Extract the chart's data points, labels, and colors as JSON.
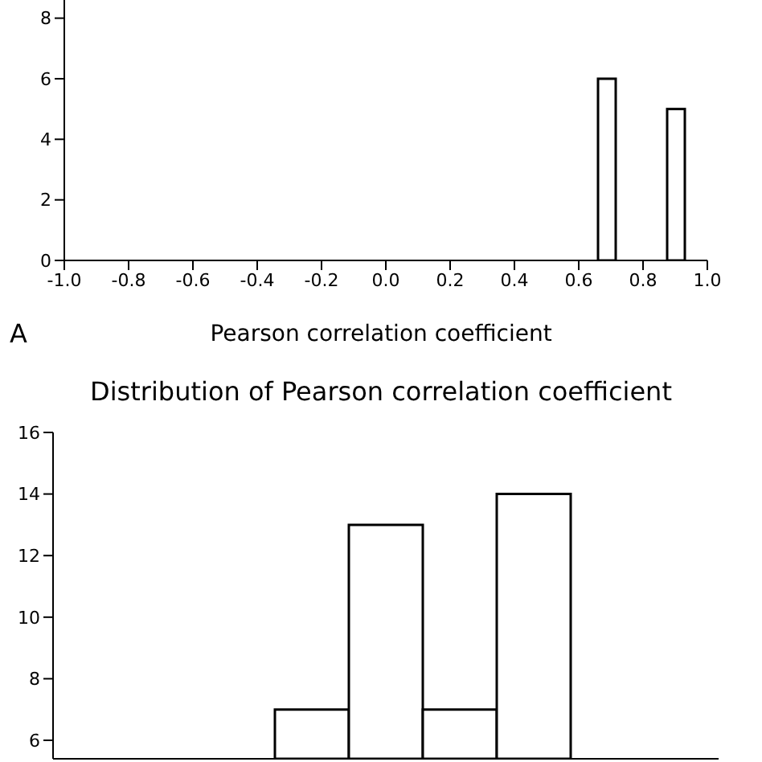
{
  "chart_data": [
    {
      "type": "histogram",
      "xlabel": "Pearson correlation coefficient",
      "annotations": [
        "A"
      ],
      "bins": [
        0.66,
        0.715,
        0.875,
        0.93
      ],
      "values": [
        6,
        null,
        5
      ],
      "color": "#ffffff",
      "xlim": [
        -1,
        1
      ],
      "xticks": [
        {
          "value": -1,
          "label": "-1.0"
        },
        {
          "value": -0.8,
          "label": "-0.8"
        },
        {
          "value": -0.6,
          "label": "-0.6"
        },
        {
          "value": -0.4,
          "label": "-0.4"
        },
        {
          "value": -0.2,
          "label": "-0.2"
        },
        {
          "value": 0,
          "label": "0.0"
        },
        {
          "value": 0.2,
          "label": "0.2"
        },
        {
          "value": 0.4,
          "label": "0.4"
        },
        {
          "value": 0.6,
          "label": "0.6"
        },
        {
          "value": 0.8,
          "label": "0.8"
        },
        {
          "value": 1,
          "label": "1.0"
        }
      ],
      "ylim": [
        0,
        8.6
      ],
      "yticks": [
        0,
        2,
        4,
        6,
        8
      ],
      "grid": false,
      "legend": false
    },
    {
      "type": "bar",
      "title": "Distribution of Pearson correlation coefficient",
      "categories": [
        null,
        null,
        null,
        null,
        null,
        null,
        null,
        null,
        null
      ],
      "values": [
        null,
        null,
        null,
        7,
        13,
        7,
        14,
        null,
        null
      ],
      "color": "#ffffff",
      "ylim": [
        5.4,
        16
      ],
      "yticks": [
        6,
        8,
        10,
        12,
        14,
        16
      ],
      "grid": false,
      "legend": false
    }
  ]
}
